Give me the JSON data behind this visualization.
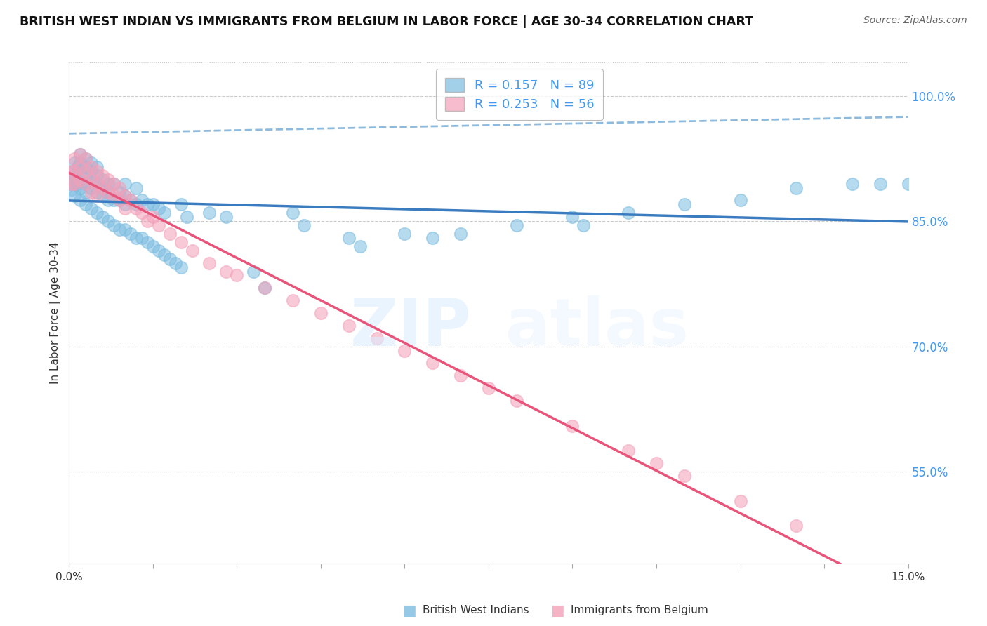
{
  "title": "BRITISH WEST INDIAN VS IMMIGRANTS FROM BELGIUM IN LABOR FORCE | AGE 30-34 CORRELATION CHART",
  "source": "Source: ZipAtlas.com",
  "ylabel": "In Labor Force | Age 30-34",
  "y_ticks": [
    0.55,
    0.7,
    0.85,
    1.0
  ],
  "y_tick_labels": [
    "55.0%",
    "70.0%",
    "85.0%",
    "100.0%"
  ],
  "xlim": [
    0.0,
    0.15
  ],
  "ylim": [
    0.44,
    1.04
  ],
  "blue_R": 0.157,
  "blue_N": 89,
  "pink_R": 0.253,
  "pink_N": 56,
  "blue_color": "#7bbce0",
  "pink_color": "#f4a0b8",
  "blue_line_color": "#3a7cbf",
  "pink_line_color": "#e8547a",
  "blue_dash_color": "#7ab0d8",
  "legend_label_blue": "British West Indians",
  "legend_label_pink": "Immigrants from Belgium",
  "blue_x": [
    0.0003,
    0.0005,
    0.0007,
    0.001,
    0.001,
    0.001,
    0.001,
    0.001,
    0.0015,
    0.0015,
    0.002,
    0.002,
    0.002,
    0.002,
    0.002,
    0.003,
    0.003,
    0.003,
    0.003,
    0.003,
    0.004,
    0.004,
    0.004,
    0.004,
    0.005,
    0.005,
    0.005,
    0.005,
    0.006,
    0.006,
    0.006,
    0.007,
    0.007,
    0.007,
    0.008,
    0.008,
    0.009,
    0.009,
    0.01,
    0.01,
    0.01,
    0.011,
    0.012,
    0.012,
    0.013,
    0.014,
    0.015,
    0.016,
    0.017,
    0.02,
    0.021,
    0.025,
    0.028,
    0.033,
    0.035,
    0.04,
    0.042,
    0.05,
    0.052,
    0.06,
    0.065,
    0.07,
    0.08,
    0.09,
    0.092,
    0.1,
    0.11,
    0.12,
    0.13,
    0.14,
    0.145,
    0.15,
    0.002,
    0.003,
    0.004,
    0.005,
    0.006,
    0.007,
    0.008,
    0.009,
    0.01,
    0.011,
    0.012,
    0.013,
    0.014,
    0.015,
    0.016,
    0.017,
    0.018,
    0.019,
    0.02
  ],
  "blue_y": [
    0.895,
    0.888,
    0.905,
    0.92,
    0.91,
    0.9,
    0.895,
    0.88,
    0.915,
    0.895,
    0.93,
    0.92,
    0.91,
    0.9,
    0.89,
    0.925,
    0.915,
    0.905,
    0.895,
    0.885,
    0.92,
    0.91,
    0.9,
    0.89,
    0.915,
    0.905,
    0.895,
    0.885,
    0.9,
    0.89,
    0.88,
    0.895,
    0.885,
    0.875,
    0.895,
    0.875,
    0.885,
    0.875,
    0.895,
    0.88,
    0.87,
    0.875,
    0.89,
    0.87,
    0.875,
    0.87,
    0.87,
    0.865,
    0.86,
    0.87,
    0.855,
    0.86,
    0.855,
    0.79,
    0.77,
    0.86,
    0.845,
    0.83,
    0.82,
    0.835,
    0.83,
    0.835,
    0.845,
    0.855,
    0.845,
    0.86,
    0.87,
    0.875,
    0.89,
    0.895,
    0.895,
    0.895,
    0.875,
    0.87,
    0.865,
    0.86,
    0.855,
    0.85,
    0.845,
    0.84,
    0.84,
    0.835,
    0.83,
    0.83,
    0.825,
    0.82,
    0.815,
    0.81,
    0.805,
    0.8,
    0.795
  ],
  "pink_x": [
    0.0002,
    0.0005,
    0.001,
    0.001,
    0.001,
    0.002,
    0.002,
    0.002,
    0.003,
    0.003,
    0.003,
    0.004,
    0.004,
    0.004,
    0.005,
    0.005,
    0.005,
    0.006,
    0.006,
    0.007,
    0.007,
    0.008,
    0.008,
    0.009,
    0.009,
    0.01,
    0.01,
    0.011,
    0.012,
    0.013,
    0.014,
    0.015,
    0.016,
    0.018,
    0.02,
    0.022,
    0.025,
    0.028,
    0.03,
    0.035,
    0.04,
    0.045,
    0.05,
    0.055,
    0.06,
    0.065,
    0.07,
    0.075,
    0.08,
    0.09,
    0.1,
    0.105,
    0.11,
    0.12,
    0.13
  ],
  "pink_y": [
    0.91,
    0.895,
    0.925,
    0.91,
    0.895,
    0.93,
    0.915,
    0.9,
    0.925,
    0.91,
    0.895,
    0.915,
    0.9,
    0.885,
    0.91,
    0.895,
    0.88,
    0.905,
    0.89,
    0.9,
    0.885,
    0.895,
    0.88,
    0.89,
    0.875,
    0.88,
    0.865,
    0.875,
    0.865,
    0.86,
    0.85,
    0.855,
    0.845,
    0.835,
    0.825,
    0.815,
    0.8,
    0.79,
    0.785,
    0.77,
    0.755,
    0.74,
    0.725,
    0.71,
    0.695,
    0.68,
    0.665,
    0.65,
    0.635,
    0.605,
    0.575,
    0.56,
    0.545,
    0.515,
    0.485
  ]
}
